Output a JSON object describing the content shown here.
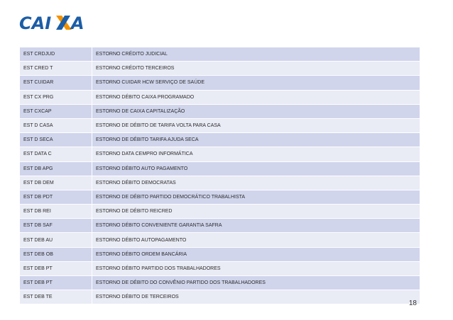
{
  "brand": {
    "logo_text": "CAIXA",
    "logo_color": "#1c5da6",
    "accent_color": "#f39200"
  },
  "table": {
    "rows": [
      {
        "code": "EST CRDJUD",
        "description": "ESTORNO CRÉDITO JUDICIAL"
      },
      {
        "code": "EST CRED T",
        "description": "ESTORNO CRÉDITO TERCEIROS"
      },
      {
        "code": "EST CUIDAR",
        "description": "ESTORNO CUIDAR HCW SERVIÇO DE SAÚDE"
      },
      {
        "code": "EST CX PRG",
        "description": "ESTORNO DÉBITO CAIXA PROGRAMADO"
      },
      {
        "code": "EST CXCAP",
        "description": "ESTORNO DE CAIXA CAPITALIZAÇÃO"
      },
      {
        "code": "EST D CASA",
        "description": "ESTORNO DE DÉBITO DE TARIFA VOLTA PARA CASA"
      },
      {
        "code": "EST D SECA",
        "description": "ESTORNO DE DÉBITO TARIFA AJUDA SECA"
      },
      {
        "code": "EST DATA C",
        "description": "ESTORNO DATA CEMPRO INFORMÁTICA"
      },
      {
        "code": "EST DB APG",
        "description": "ESTORNO DÉBITO AUTO PAGAMENTO"
      },
      {
        "code": "EST DB DEM",
        "description": "ESTORNO DÉBITO DEMOCRATAS"
      },
      {
        "code": "EST DB PDT",
        "description": "ESTORNO DE DÉBITO PARTIDO DEMOCRÁTICO TRABALHISTA"
      },
      {
        "code": "EST DB REI",
        "description": "ESTORNO DE DÉBITO REICRED"
      },
      {
        "code": "EST DB SAF",
        "description": "ESTORNO DÉBITO CONVENIENTE GARANTIA SAFRA"
      },
      {
        "code": "EST DEB AU",
        "description": "ESTORNO DÉBITO AUTOPAGAMENTO"
      },
      {
        "code": "EST DEB OB",
        "description": "ESTORNO DÉBITO ORDEM BANCÁRIA"
      },
      {
        "code": "EST DEB PT",
        "description": "ESTORNO DÉBITO PARTIDO DOS TRABALHADORES"
      },
      {
        "code": "EST DEB PT",
        "description": "ESTORNO DE DÉBITO DO CONVÊNIO PARTIDO DOS TRABALHADORES"
      },
      {
        "code": "EST DEB TE",
        "description": "ESTORNO DÉBITO DE TERCEIROS"
      }
    ]
  },
  "footer": {
    "page_number": "18"
  }
}
